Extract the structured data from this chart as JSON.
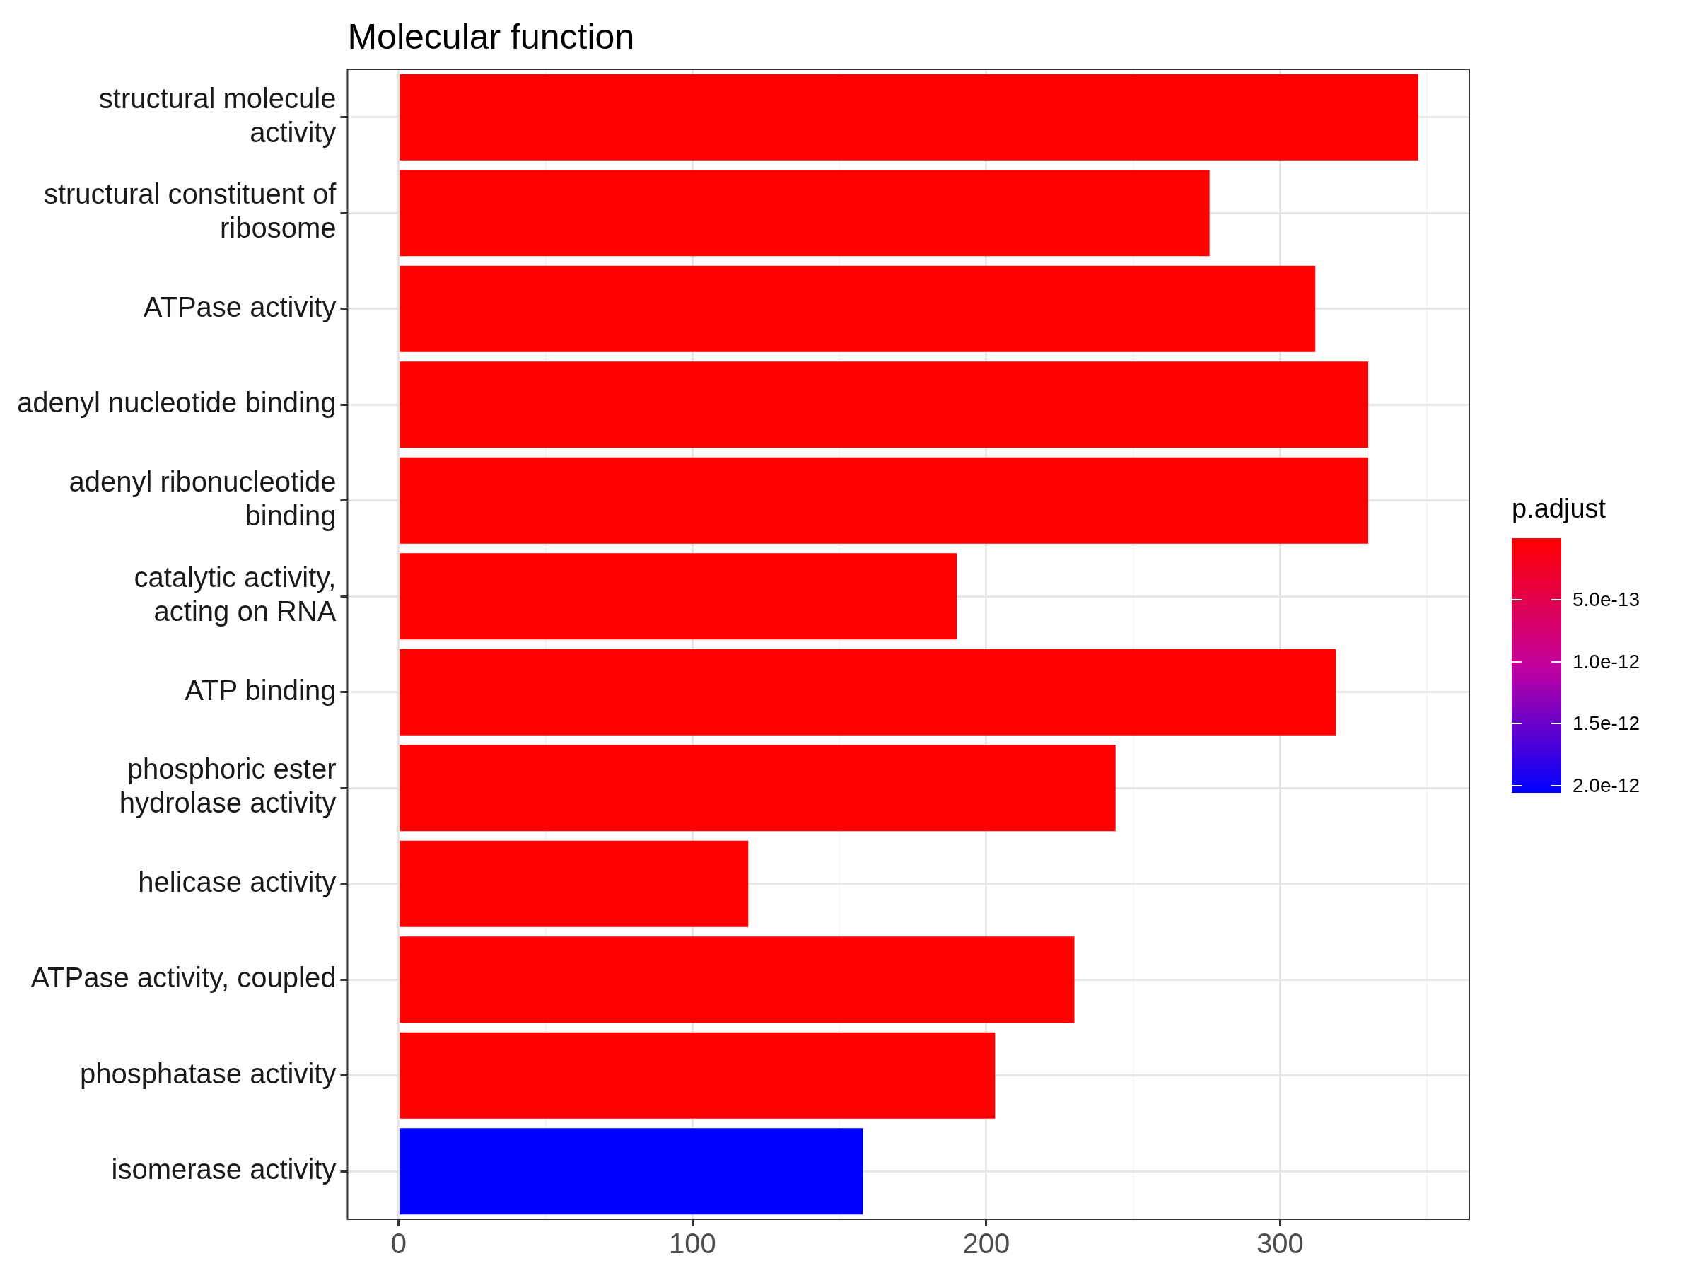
{
  "chart_data": {
    "type": "bar",
    "orientation": "horizontal",
    "title": "Molecular function",
    "clabel": "p.adjust",
    "categories": [
      "structural molecule\nactivity",
      "structural constituent of\nribosome",
      "ATPase activity",
      "adenyl nucleotide binding",
      "adenyl ribonucleotide\nbinding",
      "catalytic activity,\nacting on RNA",
      "ATP binding",
      "phosphoric ester\nhydrolase activity",
      "helicase activity",
      "ATPase activity, coupled",
      "phosphatase activity",
      "isomerase activity"
    ],
    "values": [
      347,
      276,
      312,
      330,
      330,
      190,
      319,
      244,
      119,
      230,
      203,
      158
    ],
    "colors": [
      "#ff0000",
      "#ff0000",
      "#ff0000",
      "#ff0000",
      "#ff0000",
      "#ff0000",
      "#ff0000",
      "#ff0000",
      "#ff0000",
      "#ff0000",
      "#ff0000",
      "#0000ff"
    ],
    "xlim": [
      -17.4,
      364.4
    ],
    "xticks": [
      0,
      {
        "value": 50,
        "label": null
      },
      100,
      {
        "value": 150,
        "label": null
      },
      200,
      {
        "value": 250,
        "label": null
      },
      300,
      {
        "value": 350,
        "label": null
      }
    ],
    "clim": [
      2.06e-12,
      0
    ],
    "cticks": [
      {
        "value": 5e-13,
        "label": "5.0e-13"
      },
      {
        "value": 1e-12,
        "label": "1.0e-12"
      },
      {
        "value": 1.5e-12,
        "label": "1.5e-12"
      },
      {
        "value": 2e-12,
        "label": "2.0e-12"
      }
    ],
    "grid": true,
    "legend": false
  }
}
